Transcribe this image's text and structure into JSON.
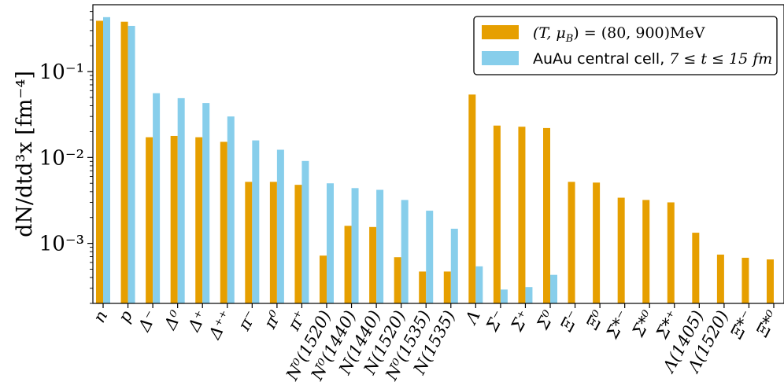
{
  "chart_data": {
    "type": "bar",
    "yscale": "log",
    "ylim": [
      0.0002,
      0.6
    ],
    "ylabel": "dN/dtd³x [fm⁻⁴]",
    "yticks": [
      {
        "value": 0.1,
        "label": "10⁻¹"
      },
      {
        "value": 0.01,
        "label": "10⁻²"
      },
      {
        "value": 0.001,
        "label": "10⁻³"
      }
    ],
    "legend_position": "top-right",
    "categories": [
      "n",
      "p",
      "Δ⁻",
      "Δ⁰",
      "Δ⁺",
      "Δ⁺⁺",
      "π⁻",
      "π⁰",
      "π⁺",
      "N⁰(1520)",
      "N⁰(1440)",
      "N(1440)",
      "N(1520)",
      "N⁰(1535)",
      "N(1535)",
      "Λ",
      "Σ⁻",
      "Σ⁺",
      "Σ⁰",
      "Ξ⁻",
      "Ξ⁰",
      "Σ*⁻",
      "Σ*⁰",
      "Σ*⁺",
      "Λ(1405)",
      "Λ(1520)",
      "Ξ*⁻",
      "Ξ*⁰"
    ],
    "series": [
      {
        "name_math": "(T, μ",
        "name_sub": "B",
        "name_rest": ") = (80, 900)MeV",
        "color": "#E69F00",
        "values": [
          0.39,
          0.38,
          0.0172,
          0.0178,
          0.0172,
          0.0152,
          0.0052,
          0.0052,
          0.0048,
          0.00072,
          0.0016,
          0.00155,
          0.00069,
          0.00047,
          0.00047,
          0.054,
          0.0235,
          0.0228,
          0.022,
          0.0052,
          0.0051,
          0.0034,
          0.0032,
          0.003,
          0.00133,
          0.00074,
          0.00068,
          0.00065
        ]
      },
      {
        "name_text": "AuAu central cell, ",
        "name_math": "7 ≤ t ≤ 15 fm",
        "color": "#87CEEB",
        "values": [
          0.43,
          0.34,
          0.056,
          0.049,
          0.043,
          0.03,
          0.0158,
          0.0123,
          0.0091,
          0.005,
          0.0044,
          0.0042,
          0.0032,
          0.0024,
          0.00148,
          0.00054,
          0.00029,
          0.00031,
          0.00043,
          null,
          null,
          null,
          null,
          null,
          null,
          null,
          null,
          null
        ]
      }
    ]
  }
}
